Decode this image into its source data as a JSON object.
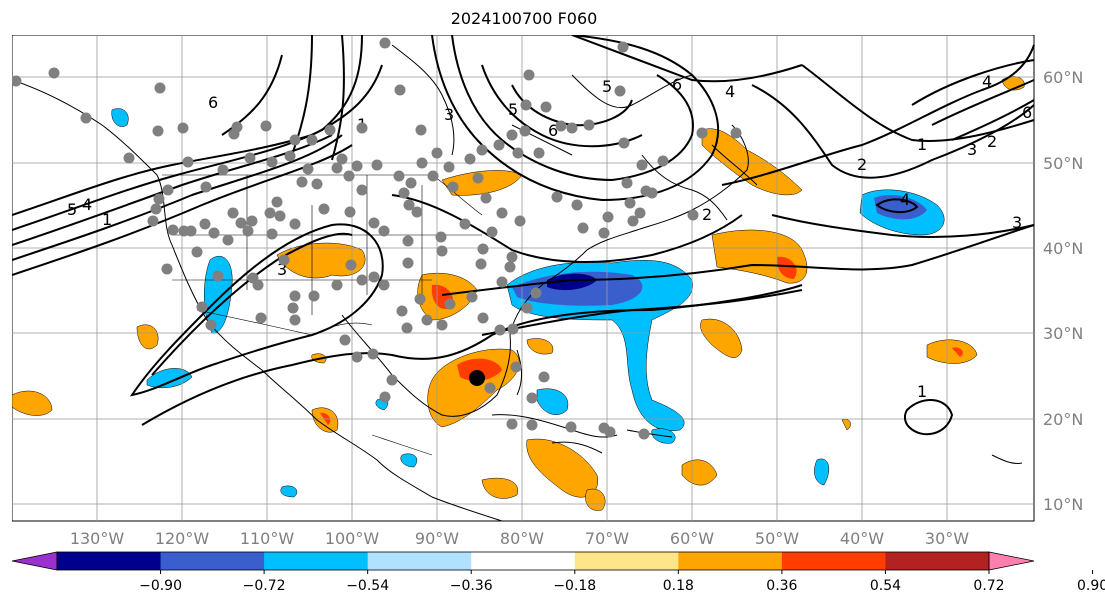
{
  "title": "2024100700 F060",
  "lat_labels": [
    "60°N",
    "50°N",
    "40°N",
    "30°N",
    "20°N",
    "10°N"
  ],
  "lon_labels": [
    "130°W",
    "120°W",
    "110°W",
    "100°W",
    "90°W",
    "80°W",
    "70°W",
    "60°W",
    "50°W",
    "40°W",
    "30°W"
  ],
  "colorbar": {
    "ticks": [
      "−0.90",
      "−0.72",
      "−0.54",
      "−0.36",
      "−0.18",
      "0.18",
      "0.36",
      "0.54",
      "0.72",
      "0.90"
    ],
    "colors": [
      "#9b30d0",
      "#00008b",
      "#3a5fcd",
      "#00bfff",
      "#b0e2ff",
      "#ffffff",
      "#ffe58a",
      "#ffa500",
      "#ff3d00",
      "#b22222",
      "#ff7fb0"
    ]
  },
  "contour_labels": [
    "6",
    "5",
    "6",
    "4",
    "6",
    "5",
    "3",
    "2",
    "1",
    "3",
    "2",
    "1",
    "4",
    "3",
    "2",
    "1",
    "4",
    "3",
    "1",
    "5",
    "4",
    "6"
  ],
  "storm_marker": "tropical-cyclone-center"
}
